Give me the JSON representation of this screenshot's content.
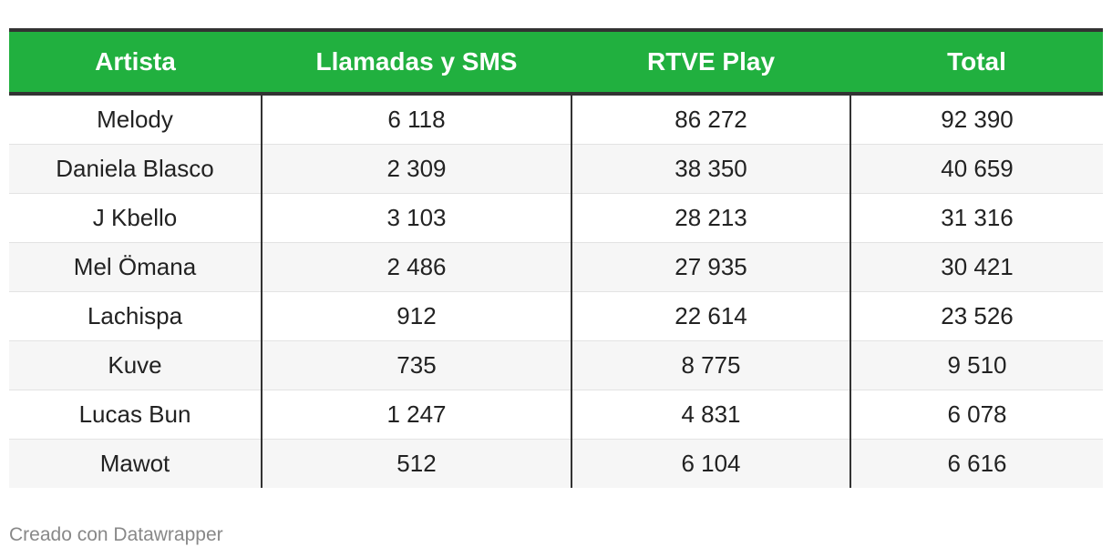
{
  "chart_data": {
    "type": "table",
    "columns": [
      "Artista",
      "Llamadas y SMS",
      "RTVE Play",
      "Total"
    ],
    "rows": [
      [
        "Melody",
        "6 118",
        "86 272",
        "92 390"
      ],
      [
        "Daniela Blasco",
        "2 309",
        "38 350",
        "40 659"
      ],
      [
        "J Kbello",
        "3 103",
        "28 213",
        "31 316"
      ],
      [
        "Mel Ömana",
        "2 486",
        "27 935",
        "30 421"
      ],
      [
        "Lachispa",
        "912",
        "22 614",
        "23 526"
      ],
      [
        "Kuve",
        "735",
        "8 775",
        "9 510"
      ],
      [
        "Lucas Bun",
        "1 247",
        "4 831",
        "6 078"
      ],
      [
        "Mawot",
        "512",
        "6 104",
        "6 616"
      ]
    ],
    "header_color": "#21b03f"
  },
  "footer": {
    "credit": "Creado con Datawrapper"
  }
}
